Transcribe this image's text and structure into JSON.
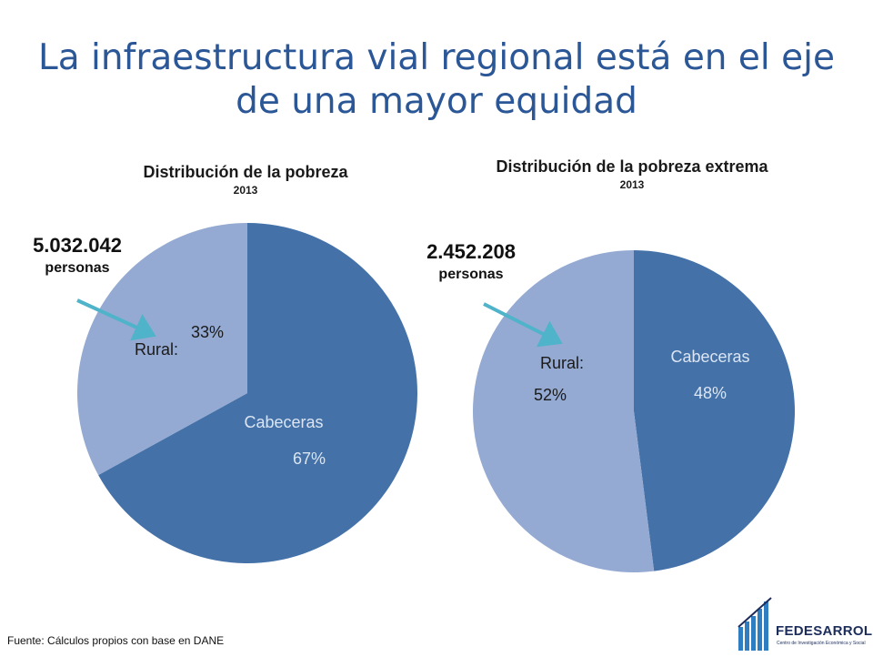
{
  "title": "La infraestructura vial regional está en el eje de una mayor equidad",
  "source": "Fuente: Cálculos propios con base en DANE",
  "logo": {
    "name": "FEDESARROLLO",
    "subtitle": "Centro de Investigación Económica y Social"
  },
  "colors": {
    "title": "#2b5797",
    "cabeceras": "#4472a8",
    "rural": "#94aad2",
    "arrow": "#4fb3c9"
  },
  "chart_data": [
    {
      "type": "pie",
      "title": "Distribución de la pobreza",
      "year": "2013",
      "annotation": {
        "value": "5.032.042",
        "unit": "personas"
      },
      "slices": [
        {
          "name": "Cabeceras",
          "value": 67,
          "label": "67%"
        },
        {
          "name": "Rural:",
          "value": 33,
          "label": "33%"
        }
      ]
    },
    {
      "type": "pie",
      "title": "Distribución de la pobreza extrema",
      "year": "2013",
      "annotation": {
        "value": "2.452.208",
        "unit": "personas"
      },
      "slices": [
        {
          "name": "Cabeceras",
          "value": 48,
          "label": "48%"
        },
        {
          "name": "Rural:",
          "value": 52,
          "label": "52%"
        }
      ]
    }
  ]
}
